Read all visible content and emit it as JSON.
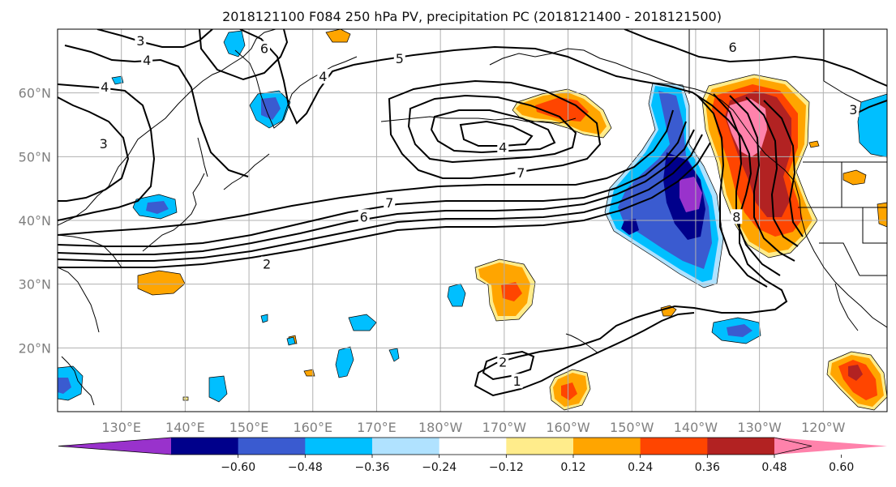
{
  "title": "2018121100 F084 250 hPa PV, precipitation PC (2018121400 - 2018121500)",
  "map": {
    "lon_range": [
      120,
      250
    ],
    "lat_range": [
      10,
      70
    ],
    "lat_ticks": [
      {
        "lat": 20,
        "label": "20°N"
      },
      {
        "lat": 30,
        "label": "30°N"
      },
      {
        "lat": 40,
        "label": "40°N"
      },
      {
        "lat": 50,
        "label": "50°N"
      },
      {
        "lat": 60,
        "label": "60°N"
      }
    ],
    "lon_ticks": [
      {
        "lon": 130,
        "label": "130°E"
      },
      {
        "lon": 140,
        "label": "140°E"
      },
      {
        "lon": 150,
        "label": "150°E"
      },
      {
        "lon": 160,
        "label": "160°E"
      },
      {
        "lon": 170,
        "label": "170°E"
      },
      {
        "lon": 180,
        "label": "180°W"
      },
      {
        "lon": 190,
        "label": "170°W"
      },
      {
        "lon": 200,
        "label": "160°W"
      },
      {
        "lon": 210,
        "label": "150°W"
      },
      {
        "lon": 220,
        "label": "140°W"
      },
      {
        "lon": 230,
        "label": "130°W"
      },
      {
        "lon": 240,
        "label": "120°W"
      }
    ],
    "grid": true
  },
  "colorbar": {
    "colors": [
      "#9932cc",
      "#00008b",
      "#3a5bd0",
      "#00bfff",
      "#b0e2ff",
      "#ffffff",
      "#ffec8b",
      "#ffa500",
      "#ff4500",
      "#b22222",
      "#ff82ab"
    ],
    "tick_labels": [
      "−0.60",
      "−0.48",
      "−0.36",
      "−0.24",
      "−0.12",
      "0.12",
      "0.24",
      "0.36",
      "0.48",
      "0.60"
    ],
    "extend": "both"
  },
  "contour_labels": [
    {
      "text": "3",
      "lon": 133.0,
      "lat": 68.2
    },
    {
      "text": "4",
      "lon": 134.0,
      "lat": 65.2
    },
    {
      "text": "4",
      "lon": 127.4,
      "lat": 61.0
    },
    {
      "text": "3",
      "lon": 127.2,
      "lat": 52.1
    },
    {
      "text": "6",
      "lon": 152.4,
      "lat": 67.0
    },
    {
      "text": "4",
      "lon": 161.6,
      "lat": 62.6
    },
    {
      "text": "5",
      "lon": 173.6,
      "lat": 65.4
    },
    {
      "text": "4",
      "lon": 189.8,
      "lat": 51.5
    },
    {
      "text": "7",
      "lon": 192.6,
      "lat": 47.5
    },
    {
      "text": "7",
      "lon": 172.0,
      "lat": 42.8
    },
    {
      "text": "6",
      "lon": 168.0,
      "lat": 40.6
    },
    {
      "text": "2",
      "lon": 152.8,
      "lat": 33.2
    },
    {
      "text": "6",
      "lon": 225.8,
      "lat": 67.2
    },
    {
      "text": "8",
      "lon": 226.4,
      "lat": 40.6
    },
    {
      "text": "3",
      "lon": 244.7,
      "lat": 57.4
    },
    {
      "text": "2",
      "lon": 189.8,
      "lat": 17.8
    },
    {
      "text": "1",
      "lon": 192.0,
      "lat": 14.8
    }
  ],
  "chart_data": {
    "type": "contour_map",
    "title": "2018121100 F084 250 hPa PV, precipitation PC (2018121400 - 2018121500)",
    "contour_levels": [
      1,
      2,
      3,
      4,
      5,
      6,
      7,
      8
    ],
    "fill_levels": [
      -0.6,
      -0.48,
      -0.36,
      -0.24,
      -0.12,
      0.12,
      0.24,
      0.36,
      0.48,
      0.6
    ],
    "colors": {
      "lt_-0.60": "#9932cc",
      "-0.60_-0.48": "#00008b",
      "-0.48_-0.36": "#3a5bd0",
      "-0.36_-0.24": "#00bfff",
      "-0.24_-0.12": "#b0e2ff",
      "-0.12_0.12": "#ffffff",
      "0.12_0.24": "#ffec8b",
      "0.24_0.36": "#ffa500",
      "0.36_0.48": "#ff4500",
      "0.48_0.60": "#b22222",
      "gt_0.60": "#ff82ab"
    },
    "lon_range": [
      120,
      250
    ],
    "lat_range": [
      10,
      70
    ],
    "features": [
      {
        "sign": "negative",
        "peak": -0.66,
        "lon": 221.5,
        "lat": 42.0
      },
      {
        "sign": "positive",
        "peak": 0.66,
        "lon": 228.5,
        "lat": 52.0
      },
      {
        "sign": "positive",
        "peak": 0.42,
        "lon": 201.5,
        "lat": 54.0
      },
      {
        "sign": "positive",
        "peak": 0.4,
        "lon": 191.0,
        "lat": 30.5
      },
      {
        "sign": "positive",
        "peak": 0.45,
        "lon": 248.0,
        "lat": 16.0
      },
      {
        "sign": "positive",
        "peak": 0.4,
        "lon": 199.0,
        "lat": 13.0
      },
      {
        "sign": "negative",
        "peak": -0.4,
        "lon": 150.5,
        "lat": 57.5
      },
      {
        "sign": "negative",
        "peak": -0.4,
        "lon": 222.0,
        "lat": 21.5
      },
      {
        "sign": "negative",
        "peak": -0.4,
        "lon": 144.5,
        "lat": 13.5
      }
    ]
  }
}
